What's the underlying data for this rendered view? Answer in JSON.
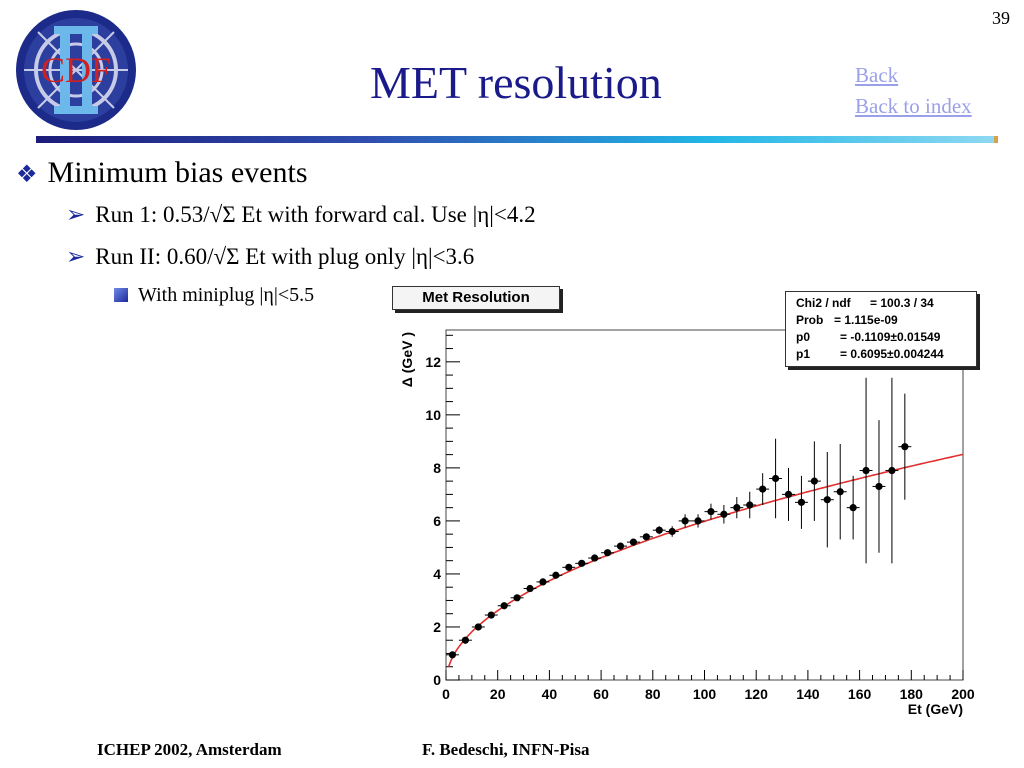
{
  "slide": {
    "number": "39",
    "title": "MET resolution",
    "logo_text": "CDF",
    "nav": {
      "back": "Back",
      "back_to_index": "Back to index"
    },
    "bullets": {
      "level1": "Minimum bias events",
      "level2": [
        "Run 1: 0.53/√Σ Et with forward cal. Use |η|<4.2",
        "Run II: 0.60/√Σ Et with plug only |η|<3.6"
      ],
      "level3": "With miniplug |η|<5.5"
    },
    "footer": {
      "left": "ICHEP 2002, Amsterdam",
      "right": "F. Bedeschi, INFN-Pisa"
    },
    "colors": {
      "title": "#1a1a8a",
      "bullet": "#1a2a9a",
      "link": "#9aa0e8",
      "fit": "#e03030"
    }
  },
  "chart_data": {
    "type": "scatter",
    "title": "Met Resolution",
    "xlabel": "E_t (GeV)",
    "ylabel": "Δ (GeV )",
    "xlim": [
      0,
      200
    ],
    "ylim": [
      0,
      13.2
    ],
    "xticks": [
      0,
      20,
      40,
      60,
      80,
      100,
      120,
      140,
      160,
      180,
      200
    ],
    "yticks": [
      0,
      2,
      4,
      6,
      8,
      10,
      12
    ],
    "series": [
      {
        "points": [
          {
            "x": 2.5,
            "y": 0.95,
            "err": 0.1
          },
          {
            "x": 7.5,
            "y": 1.5,
            "err": 0.1
          },
          {
            "x": 12.5,
            "y": 2.0,
            "err": 0.1
          },
          {
            "x": 17.5,
            "y": 2.45,
            "err": 0.1
          },
          {
            "x": 22.5,
            "y": 2.8,
            "err": 0.1
          },
          {
            "x": 27.5,
            "y": 3.1,
            "err": 0.1
          },
          {
            "x": 32.5,
            "y": 3.45,
            "err": 0.1
          },
          {
            "x": 37.5,
            "y": 3.7,
            "err": 0.1
          },
          {
            "x": 42.5,
            "y": 3.95,
            "err": 0.1
          },
          {
            "x": 47.5,
            "y": 4.25,
            "err": 0.1
          },
          {
            "x": 52.5,
            "y": 4.4,
            "err": 0.1
          },
          {
            "x": 57.5,
            "y": 4.6,
            "err": 0.1
          },
          {
            "x": 62.5,
            "y": 4.8,
            "err": 0.1
          },
          {
            "x": 67.5,
            "y": 5.05,
            "err": 0.1
          },
          {
            "x": 72.5,
            "y": 5.2,
            "err": 0.1
          },
          {
            "x": 77.5,
            "y": 5.4,
            "err": 0.1
          },
          {
            "x": 82.5,
            "y": 5.65,
            "err": 0.15
          },
          {
            "x": 87.5,
            "y": 5.6,
            "err": 0.2
          },
          {
            "x": 92.5,
            "y": 6.0,
            "err": 0.25
          },
          {
            "x": 97.5,
            "y": 6.0,
            "err": 0.25
          },
          {
            "x": 102.5,
            "y": 6.35,
            "err": 0.3
          },
          {
            "x": 107.5,
            "y": 6.25,
            "err": 0.35
          },
          {
            "x": 112.5,
            "y": 6.5,
            "err": 0.4
          },
          {
            "x": 117.5,
            "y": 6.6,
            "err": 0.5
          },
          {
            "x": 122.5,
            "y": 7.2,
            "err": 0.6
          },
          {
            "x": 127.5,
            "y": 7.6,
            "err": 1.5
          },
          {
            "x": 132.5,
            "y": 7.0,
            "err": 1.0
          },
          {
            "x": 137.5,
            "y": 6.7,
            "err": 1.0
          },
          {
            "x": 142.5,
            "y": 7.5,
            "err": 1.5
          },
          {
            "x": 147.5,
            "y": 6.8,
            "err": 1.8
          },
          {
            "x": 152.5,
            "y": 7.1,
            "err": 1.8
          },
          {
            "x": 157.5,
            "y": 6.5,
            "err": 1.2
          },
          {
            "x": 162.5,
            "y": 7.9,
            "err": 3.5
          },
          {
            "x": 167.5,
            "y": 7.3,
            "err": 2.5
          },
          {
            "x": 172.5,
            "y": 7.9,
            "err": 3.5
          },
          {
            "x": 177.5,
            "y": 8.8,
            "err": 2.0
          }
        ]
      }
    ],
    "fit": {
      "formula": "p0 + p1*sqrt(x)",
      "p0": -0.1109,
      "p1": 0.6095,
      "color": "#e03030"
    },
    "stats_box": [
      {
        "label": "Chi2 / ndf",
        "value": "= 100.3 / 34"
      },
      {
        "label": "Prob",
        "value": "= 1.115e-09"
      },
      {
        "label": "p0",
        "value": "= -0.1109",
        "err": "0.01549"
      },
      {
        "label": "p1",
        "value": "= 0.6095",
        "err": "0.004244"
      }
    ],
    "grid": false
  }
}
